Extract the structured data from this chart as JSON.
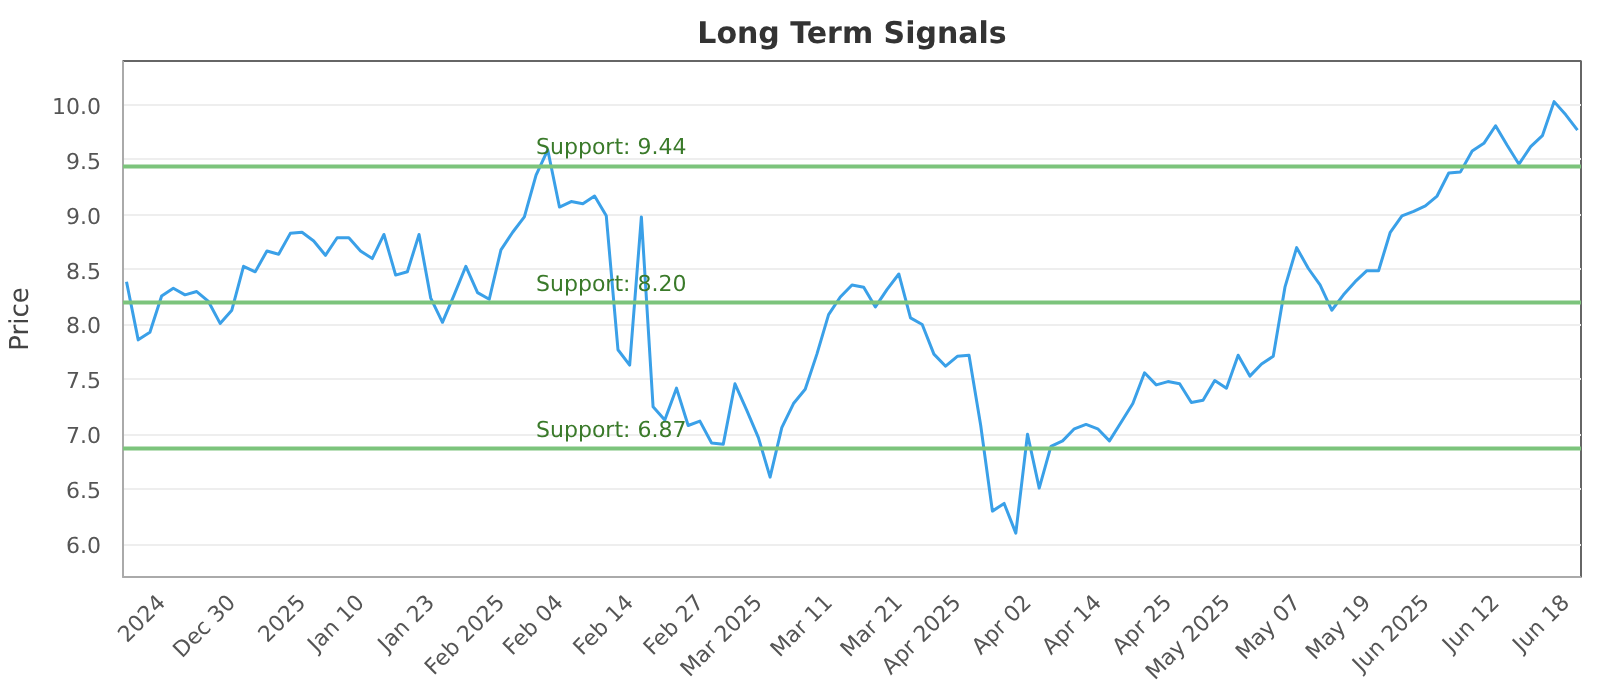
{
  "chart_data": {
    "type": "line",
    "title": "Long Term Signals",
    "ylabel": "Price",
    "categories": [
      null,
      null,
      null,
      "2024",
      null,
      null,
      null,
      null,
      null,
      "Dec 30",
      null,
      null,
      null,
      null,
      null,
      "2025",
      null,
      null,
      null,
      null,
      "Jan 10",
      null,
      null,
      null,
      null,
      null,
      "Jan 23",
      null,
      null,
      null,
      null,
      null,
      "Feb 2025",
      null,
      null,
      null,
      null,
      "Feb 04",
      null,
      null,
      null,
      null,
      null,
      "Feb 14",
      null,
      null,
      null,
      null,
      null,
      "Feb 27",
      null,
      null,
      null,
      null,
      "Mar 2025",
      null,
      null,
      null,
      null,
      null,
      "Mar 11",
      null,
      null,
      null,
      null,
      null,
      "Mar 21",
      null,
      null,
      null,
      null,
      "Apr 2025",
      null,
      null,
      null,
      null,
      null,
      "Apr 02",
      null,
      null,
      null,
      null,
      null,
      "Apr 14",
      null,
      null,
      null,
      null,
      null,
      "Apr 25",
      null,
      null,
      null,
      null,
      "May 2025",
      null,
      null,
      null,
      null,
      null,
      "May 07",
      null,
      null,
      null,
      null,
      null,
      "May 19",
      null,
      null,
      null,
      null,
      "Jun 2025",
      null,
      null,
      null,
      null,
      null,
      "Jun 12",
      null,
      null,
      null,
      null,
      null,
      "Jun 18",
      null
    ],
    "series": [
      {
        "color": "#3aa0e8",
        "values": [
          8.39,
          7.86,
          7.93,
          8.26,
          8.33,
          8.27,
          8.3,
          8.21,
          8.01,
          8.13,
          8.53,
          8.48,
          8.67,
          8.64,
          8.83,
          8.84,
          8.76,
          8.63,
          8.79,
          8.79,
          8.67,
          8.6,
          8.82,
          8.45,
          8.48,
          8.82,
          8.24,
          8.02,
          8.27,
          8.53,
          8.29,
          8.23,
          8.68,
          8.84,
          8.98,
          9.36,
          9.59,
          9.07,
          9.12,
          9.1,
          9.17,
          8.99,
          7.77,
          7.63,
          8.98,
          7.25,
          7.13,
          7.42,
          7.08,
          7.12,
          6.92,
          6.91,
          7.46,
          7.22,
          6.97,
          6.61,
          7.06,
          7.28,
          7.41,
          7.73,
          8.09,
          8.25,
          8.36,
          8.34,
          8.16,
          8.32,
          8.46,
          8.06,
          8.0,
          7.73,
          7.62,
          7.71,
          7.72,
          7.08,
          6.3,
          6.37,
          6.1,
          7.0,
          6.51,
          6.89,
          6.94,
          7.05,
          7.09,
          7.05,
          6.94,
          7.11,
          7.28,
          7.56,
          7.45,
          7.48,
          7.46,
          7.29,
          7.31,
          7.49,
          7.42,
          7.72,
          7.53,
          7.64,
          7.71,
          8.34,
          8.7,
          8.51,
          8.36,
          8.13,
          8.27,
          8.39,
          8.49,
          8.49,
          8.84,
          8.99,
          9.03,
          9.08,
          9.17,
          9.38,
          9.39,
          9.58,
          9.65,
          9.81,
          9.63,
          9.46,
          9.62,
          9.72,
          10.03,
          9.91,
          9.77
        ]
      }
    ],
    "ylim": [
      5.7,
      10.4
    ],
    "yticks": [
      {
        "value": 6,
        "label": "6.0"
      },
      6.5,
      {
        "value": 7,
        "label": "7.0"
      },
      7.5,
      {
        "value": 8,
        "label": "8.0"
      },
      8.5,
      {
        "value": 9,
        "label": "9.0"
      },
      9.5,
      {
        "value": 10,
        "label": "10.0"
      }
    ],
    "grid": "y",
    "marker": "none",
    "line_style": "solid",
    "ref_lines": [
      {
        "axis": "y",
        "value": 9.44,
        "label": "Support: 9.44",
        "color": "#7cc47c"
      },
      {
        "axis": "y",
        "value": 8.2,
        "label": "Support: 8.20",
        "color": "#7cc47c"
      },
      {
        "axis": "y",
        "value": 6.87,
        "label": "Support: 6.87",
        "color": "#7cc47c"
      }
    ]
  }
}
